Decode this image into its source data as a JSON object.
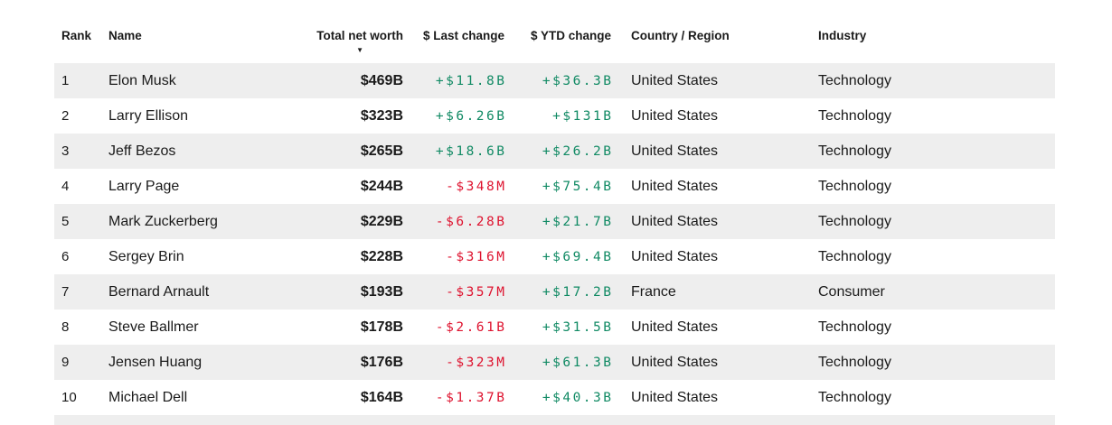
{
  "app": {
    "view_title": "Billionaires ranking table"
  },
  "colors": {
    "positive": "#118a64",
    "negative": "#de132f",
    "stripe": "#eeeeee",
    "text": "#1a1a1a"
  },
  "table": {
    "sort_icon": "▼",
    "sorted_column": "Total net worth",
    "sort_direction": "descending",
    "columns": [
      {
        "key": "rank",
        "label": "Rank"
      },
      {
        "key": "name",
        "label": "Name"
      },
      {
        "key": "net_worth",
        "label": "Total net worth"
      },
      {
        "key": "last_change",
        "label": "$ Last change"
      },
      {
        "key": "ytd_change",
        "label": "$ YTD change"
      },
      {
        "key": "country",
        "label": "Country / Region"
      },
      {
        "key": "industry",
        "label": "Industry"
      }
    ],
    "rows": [
      {
        "rank": "1",
        "name": "Elon Musk",
        "net_worth": "$469B",
        "last_change": "+$11.8B",
        "ytd_change": "+$36.3B",
        "country": "United States",
        "industry": "Technology"
      },
      {
        "rank": "2",
        "name": "Larry Ellison",
        "net_worth": "$323B",
        "last_change": "+$6.26B",
        "ytd_change": "+$131B",
        "country": "United States",
        "industry": "Technology"
      },
      {
        "rank": "3",
        "name": "Jeff Bezos",
        "net_worth": "$265B",
        "last_change": "+$18.6B",
        "ytd_change": "+$26.2B",
        "country": "United States",
        "industry": "Technology"
      },
      {
        "rank": "4",
        "name": "Larry Page",
        "net_worth": "$244B",
        "last_change": "-$348M",
        "ytd_change": "+$75.4B",
        "country": "United States",
        "industry": "Technology"
      },
      {
        "rank": "5",
        "name": "Mark Zuckerberg",
        "net_worth": "$229B",
        "last_change": "-$6.28B",
        "ytd_change": "+$21.7B",
        "country": "United States",
        "industry": "Technology"
      },
      {
        "rank": "6",
        "name": "Sergey Brin",
        "net_worth": "$228B",
        "last_change": "-$316M",
        "ytd_change": "+$69.4B",
        "country": "United States",
        "industry": "Technology"
      },
      {
        "rank": "7",
        "name": "Bernard Arnault",
        "net_worth": "$193B",
        "last_change": "-$357M",
        "ytd_change": "+$17.2B",
        "country": "France",
        "industry": "Consumer"
      },
      {
        "rank": "8",
        "name": "Steve Ballmer",
        "net_worth": "$178B",
        "last_change": "-$2.61B",
        "ytd_change": "+$31.5B",
        "country": "United States",
        "industry": "Technology"
      },
      {
        "rank": "9",
        "name": "Jensen Huang",
        "net_worth": "$176B",
        "last_change": "-$323M",
        "ytd_change": "+$61.3B",
        "country": "United States",
        "industry": "Technology"
      },
      {
        "rank": "10",
        "name": "Michael Dell",
        "net_worth": "$164B",
        "last_change": "-$1.37B",
        "ytd_change": "+$40.3B",
        "country": "United States",
        "industry": "Technology"
      }
    ]
  }
}
